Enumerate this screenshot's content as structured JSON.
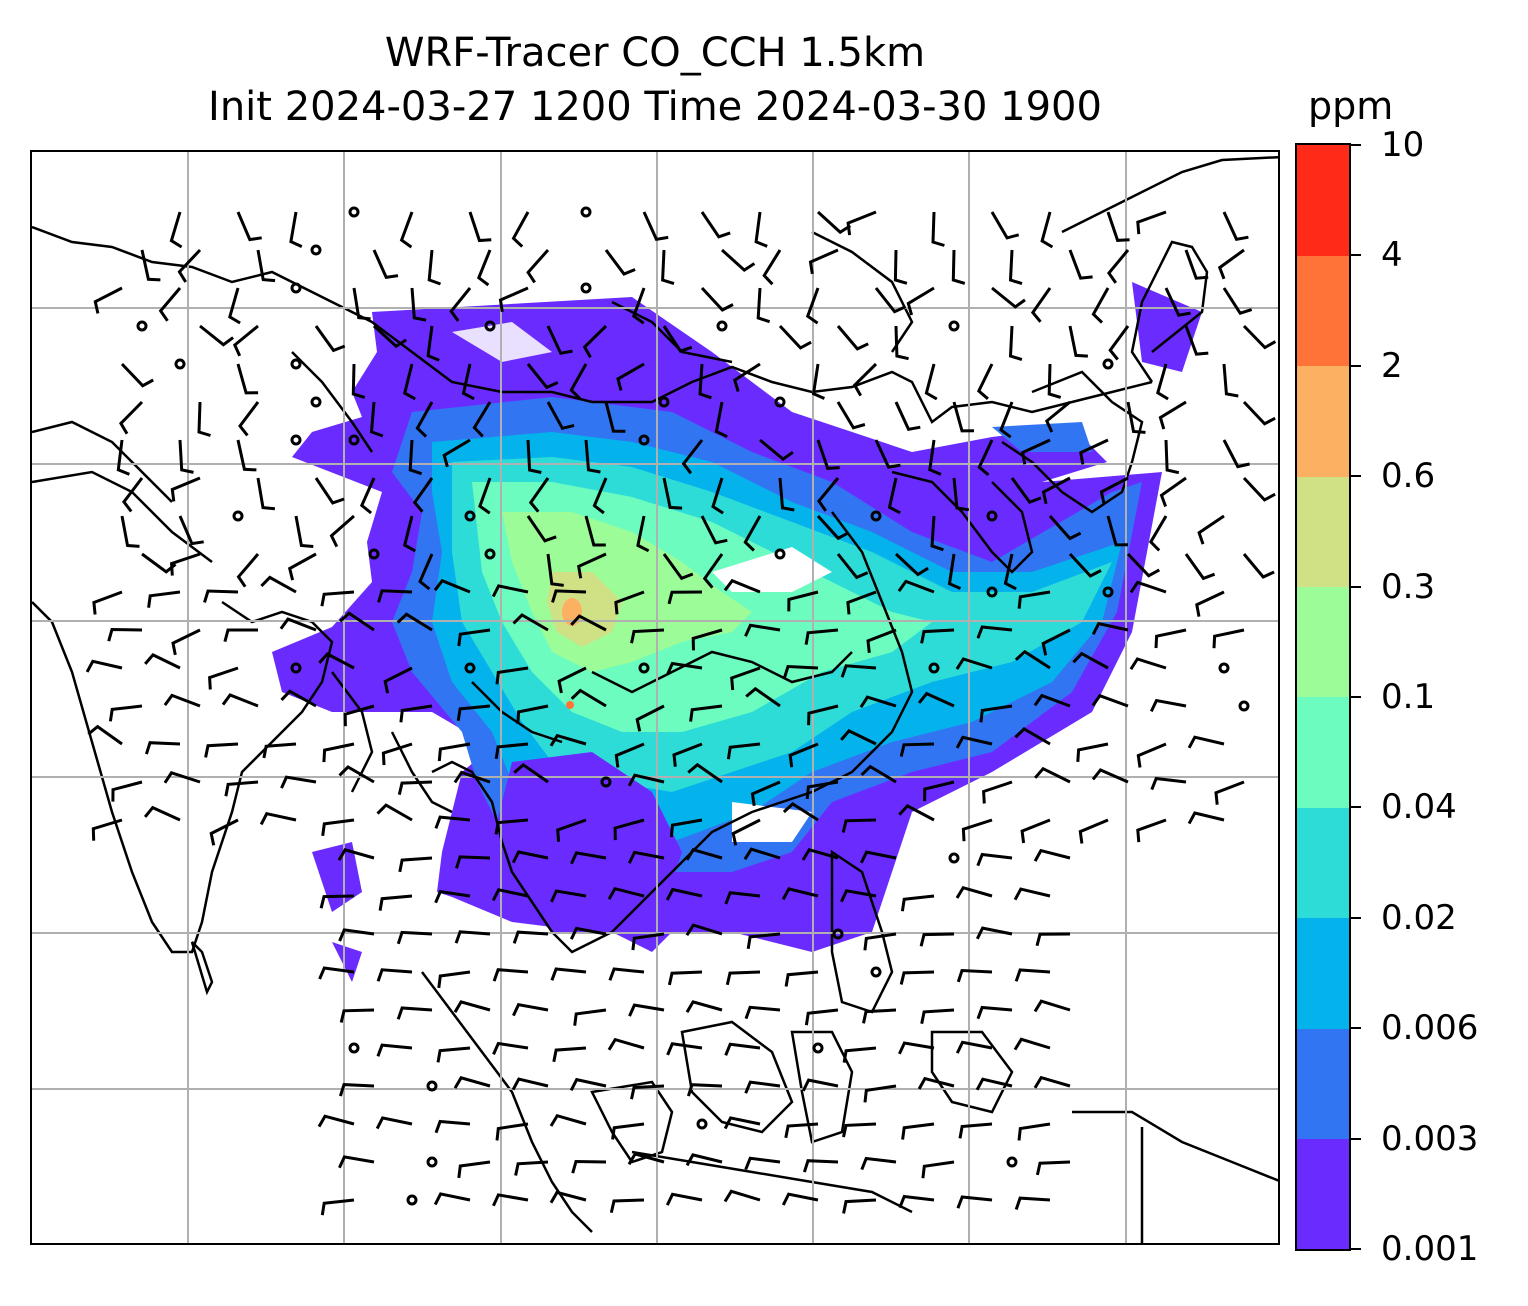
{
  "title_line1": "WRF-Tracer CO_CCH 1.5km",
  "title_line2": "Init 2024-03-27 1200 Time 2024-03-30 1900",
  "colorbar": {
    "units": "ppm",
    "levels": [
      "0.001",
      "0.003",
      "0.006",
      "0.02",
      "0.04",
      "0.1",
      "0.3",
      "0.6",
      "2",
      "4",
      "10"
    ],
    "colors": [
      "#6a2bff",
      "#3275f2",
      "#05b3ec",
      "#2edcd7",
      "#6cfcc0",
      "#9cfc98",
      "#d0e084",
      "#fcb162",
      "#ff7238",
      "#ff2a18"
    ]
  },
  "map": {
    "grid": true,
    "field": "CO_CCH tracer concentration (filled contours)",
    "overlay": "wind barbs"
  }
}
